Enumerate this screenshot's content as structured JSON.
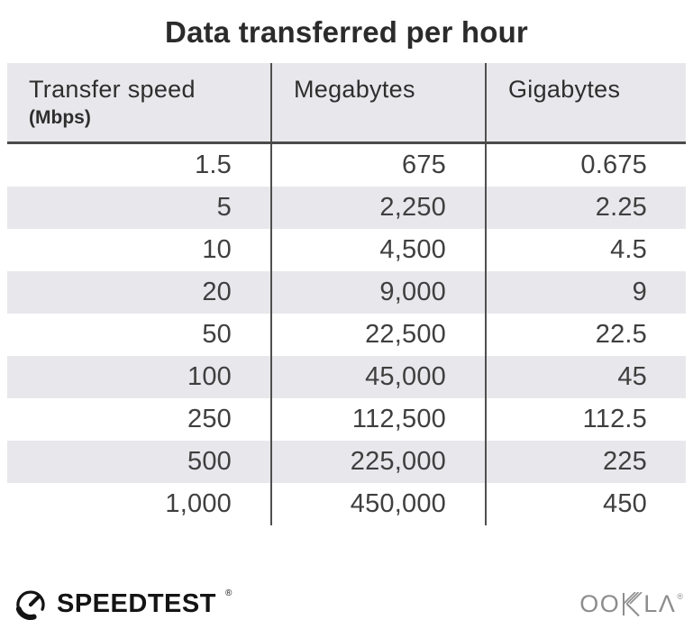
{
  "title": "Data transferred per hour",
  "table": {
    "columns": [
      {
        "label": "Transfer speed",
        "sublabel": "(Mbps)"
      },
      {
        "label": "Megabytes"
      },
      {
        "label": "Gigabytes"
      }
    ],
    "rows": [
      [
        "1.5",
        "675",
        "0.675"
      ],
      [
        "5",
        "2,250",
        "2.25"
      ],
      [
        "10",
        "4,500",
        "4.5"
      ],
      [
        "20",
        "9,000",
        "9"
      ],
      [
        "50",
        "22,500",
        "22.5"
      ],
      [
        "100",
        "45,000",
        "45"
      ],
      [
        "250",
        "112,500",
        "112.5"
      ],
      [
        "500",
        "225,000",
        "225"
      ],
      [
        "1,000",
        "450,000",
        "450"
      ]
    ]
  },
  "footer": {
    "brand": "SPEEDTEST",
    "brand_mark": "®",
    "company": "OOKLA",
    "company_mark": "®"
  },
  "colors": {
    "header_bg": "#e8e8ec",
    "stripe": "#e8e8ec",
    "divider": "#4f4f4f",
    "title_text": "#2b2b2b",
    "number_text": "#3f3f3f",
    "ookla_gray": "#8d8d8d",
    "brand_black": "#141414"
  },
  "chart_data": {
    "type": "table",
    "title": "Data transferred per hour",
    "columns": [
      "Transfer speed (Mbps)",
      "Megabytes",
      "Gigabytes"
    ],
    "rows": [
      [
        1.5,
        675,
        0.675
      ],
      [
        5,
        2250,
        2.25
      ],
      [
        10,
        4500,
        4.5
      ],
      [
        20,
        9000,
        9
      ],
      [
        50,
        22500,
        22.5
      ],
      [
        100,
        45000,
        45
      ],
      [
        250,
        112500,
        112.5
      ],
      [
        500,
        225000,
        225
      ],
      [
        1000,
        450000,
        450
      ]
    ],
    "layout_hints": {
      "striped_rows": "even rows shaded",
      "alignment": "numbers right-aligned",
      "column_dividers": true
    }
  }
}
